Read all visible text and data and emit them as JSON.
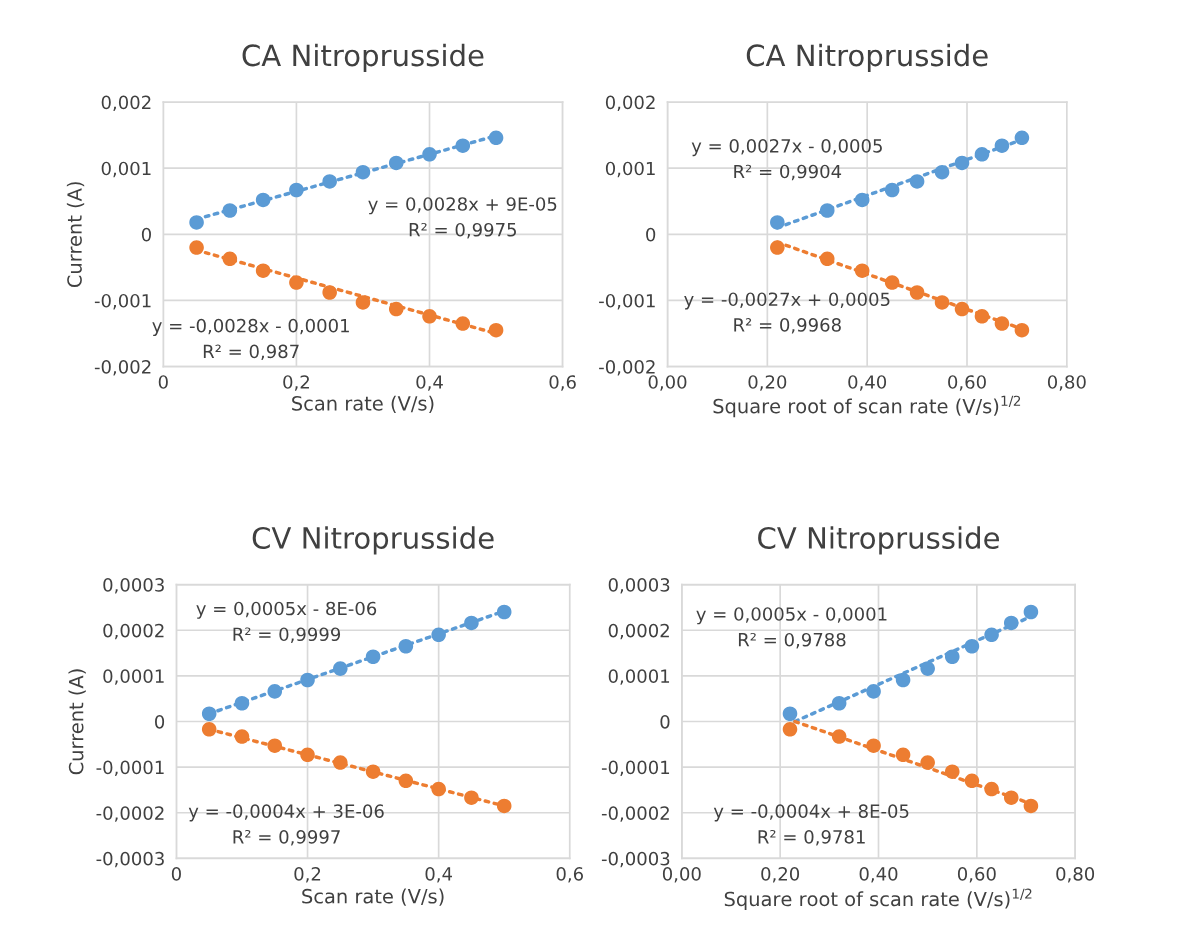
{
  "chart_data": [
    {
      "type": "scatter",
      "title": "CA Nitroprusside",
      "xlabel": "Scan rate (V/s)",
      "ylabel": "Current (A)",
      "marker": "circle",
      "grid": true,
      "xlim": [
        0,
        0.6
      ],
      "xticks": [
        0,
        {
          "value": 0.2,
          "label": "0,2"
        },
        {
          "value": 0.4,
          "label": "0,4"
        },
        {
          "value": 0.6,
          "label": "0,6"
        }
      ],
      "ylim": [
        -0.002,
        0.002
      ],
      "yticks": [
        {
          "value": -0.002,
          "label": "-0,002"
        },
        {
          "value": -0.001,
          "label": "-0,001"
        },
        0,
        {
          "value": 0.001,
          "label": "0,001"
        },
        {
          "value": 0.002,
          "label": "0,002"
        }
      ],
      "x": [
        0.05,
        0.1,
        0.15,
        0.2,
        0.25,
        0.3,
        0.35,
        0.4,
        0.45,
        0.5
      ],
      "series": [
        {
          "color": "#5b9bd5",
          "values": [
            0.00018,
            0.00036,
            0.00052,
            0.00067,
            0.0008,
            0.00094,
            0.00108,
            0.00121,
            0.00134,
            0.00146
          ]
        },
        {
          "color": "#ed7d31",
          "values": [
            -0.0002,
            -0.00037,
            -0.00055,
            -0.00073,
            -0.00088,
            -0.00103,
            -0.00113,
            -0.00124,
            -0.00135,
            -0.00145
          ]
        },
        {
          "type": "line",
          "marker": "none",
          "line_style": "dotted",
          "color": "#5b9bd5",
          "x": [
            0.05,
            0.5
          ],
          "values": [
            0.00023,
            0.00149
          ]
        },
        {
          "type": "line",
          "marker": "none",
          "line_style": "dotted",
          "color": "#ed7d31",
          "x": [
            0.05,
            0.5
          ],
          "values": [
            -0.00024,
            -0.0015
          ]
        }
      ],
      "annotations": [
        "y = 0,0028x + 9E-05\nR² = 0,9975",
        "y = -0,0028x - 0,0001\nR² = 0,987"
      ]
    },
    {
      "type": "scatter",
      "title": "CA Nitroprusside",
      "xlabel": "Square root of scan rate (V/s)$^{1/2}$",
      "marker": "circle",
      "grid": true,
      "xlim": [
        0,
        0.8
      ],
      "xticks": [
        {
          "value": 0,
          "label": "0,00"
        },
        {
          "value": 0.2,
          "label": "0,20"
        },
        {
          "value": 0.4,
          "label": "0,40"
        },
        {
          "value": 0.6,
          "label": "0,60"
        },
        {
          "value": 0.8,
          "label": "0,80"
        }
      ],
      "ylim": [
        -0.002,
        0.002
      ],
      "yticks": [
        {
          "value": -0.002,
          "label": "-0,002"
        },
        {
          "value": -0.001,
          "label": "-0,001"
        },
        0,
        {
          "value": 0.001,
          "label": "0,001"
        },
        {
          "value": 0.002,
          "label": "0,002"
        }
      ],
      "x": [
        0.22,
        0.32,
        0.39,
        0.45,
        0.5,
        0.55,
        0.59,
        0.63,
        0.67,
        0.71
      ],
      "series": [
        {
          "color": "#5b9bd5",
          "values": [
            0.00018,
            0.00036,
            0.00052,
            0.00067,
            0.0008,
            0.00094,
            0.00108,
            0.00121,
            0.00134,
            0.00146
          ]
        },
        {
          "color": "#ed7d31",
          "values": [
            -0.0002,
            -0.00037,
            -0.00055,
            -0.00073,
            -0.00088,
            -0.00103,
            -0.00113,
            -0.00124,
            -0.00135,
            -0.00145
          ]
        },
        {
          "type": "line",
          "marker": "none",
          "line_style": "dotted",
          "color": "#5b9bd5",
          "x": [
            0.22,
            0.71
          ],
          "values": [
            0.0001,
            0.00143
          ]
        },
        {
          "type": "line",
          "marker": "none",
          "line_style": "dotted",
          "color": "#ed7d31",
          "x": [
            0.22,
            0.71
          ],
          "values": [
            -0.00012,
            -0.00143
          ]
        }
      ],
      "annotations": [
        "y = 0,0027x - 0,0005\nR² = 0,9904",
        "y = -0,0027x + 0,0005\nR² = 0,9968"
      ]
    },
    {
      "type": "scatter",
      "title": "CV Nitroprusside",
      "xlabel": "Scan rate (V/s)",
      "ylabel": "Current (A)",
      "marker": "circle",
      "grid": true,
      "xlim": [
        0,
        0.6
      ],
      "xticks": [
        0,
        {
          "value": 0.2,
          "label": "0,2"
        },
        {
          "value": 0.4,
          "label": "0,4"
        },
        {
          "value": 0.6,
          "label": "0,6"
        }
      ],
      "ylim": [
        -0.0003,
        0.0003
      ],
      "yticks": [
        {
          "value": -0.0003,
          "label": "-0,0003"
        },
        {
          "value": -0.0002,
          "label": "-0,0002"
        },
        {
          "value": -0.0001,
          "label": "-0,0001"
        },
        0,
        {
          "value": 0.0001,
          "label": "0,0001"
        },
        {
          "value": 0.0002,
          "label": "0,0002"
        },
        {
          "value": 0.0003,
          "label": "0,0003"
        }
      ],
      "x": [
        0.05,
        0.1,
        0.15,
        0.2,
        0.25,
        0.3,
        0.35,
        0.4,
        0.45,
        0.5
      ],
      "series": [
        {
          "color": "#5b9bd5",
          "values": [
            1.7e-05,
            4e-05,
            6.6e-05,
            9.1e-05,
            0.000116,
            0.000142,
            0.000165,
            0.00019,
            0.000216,
            0.00024
          ]
        },
        {
          "color": "#ed7d31",
          "values": [
            -1.7e-05,
            -3.3e-05,
            -5.3e-05,
            -7.3e-05,
            -9e-05,
            -0.00011,
            -0.00013,
            -0.000148,
            -0.000167,
            -0.000185
          ]
        },
        {
          "type": "line",
          "marker": "none",
          "line_style": "dotted",
          "color": "#5b9bd5",
          "x": [
            0.05,
            0.5
          ],
          "values": [
            1.7e-05,
            0.000242
          ]
        },
        {
          "type": "line",
          "marker": "none",
          "line_style": "dotted",
          "color": "#ed7d31",
          "x": [
            0.05,
            0.5
          ],
          "values": [
            -1.7e-05,
            -0.000185
          ]
        }
      ],
      "annotations": [
        "y = 0,0005x - 8E-06\nR² = 0,9999",
        "y = -0,0004x + 3E-06\nR² = 0,9997"
      ]
    },
    {
      "type": "scatter",
      "title": "CV Nitroprusside",
      "xlabel": "Square root of scan rate (V/s)$^{1/2}$",
      "marker": "circle",
      "grid": true,
      "xlim": [
        0,
        0.8
      ],
      "xticks": [
        {
          "value": 0,
          "label": "0,00"
        },
        {
          "value": 0.2,
          "label": "0,20"
        },
        {
          "value": 0.4,
          "label": "0,40"
        },
        {
          "value": 0.6,
          "label": "0,60"
        },
        {
          "value": 0.8,
          "label": "0,80"
        }
      ],
      "ylim": [
        -0.0003,
        0.0003
      ],
      "yticks": [
        {
          "value": -0.0003,
          "label": "-0,0003"
        },
        {
          "value": -0.0002,
          "label": "-0,0002"
        },
        {
          "value": -0.0001,
          "label": "-0,0001"
        },
        0,
        {
          "value": 0.0001,
          "label": "0,0001"
        },
        {
          "value": 0.0002,
          "label": "0,0002"
        },
        {
          "value": 0.0003,
          "label": "0,0003"
        }
      ],
      "x": [
        0.22,
        0.32,
        0.39,
        0.45,
        0.5,
        0.55,
        0.59,
        0.63,
        0.67,
        0.71
      ],
      "series": [
        {
          "color": "#5b9bd5",
          "values": [
            1.7e-05,
            4e-05,
            6.6e-05,
            9.1e-05,
            0.000116,
            0.000142,
            0.000165,
            0.00019,
            0.000216,
            0.00024
          ]
        },
        {
          "color": "#ed7d31",
          "values": [
            -1.7e-05,
            -3.3e-05,
            -5.3e-05,
            -7.3e-05,
            -9e-05,
            -0.00011,
            -0.00013,
            -0.000148,
            -0.000167,
            -0.000185
          ]
        },
        {
          "type": "line",
          "marker": "none",
          "line_style": "dotted",
          "color": "#5b9bd5",
          "x": [
            0.23,
            0.71
          ],
          "values": [
            0.0,
            0.00023
          ]
        },
        {
          "type": "line",
          "marker": "none",
          "line_style": "dotted",
          "color": "#ed7d31",
          "x": [
            0.23,
            0.71
          ],
          "values": [
            0.0,
            -0.00018
          ]
        }
      ],
      "annotations": [
        "y = 0,0005x - 0,0001\nR² = 0,9788",
        "y = -0,0004x + 8E-05\nR² = 0,9781"
      ]
    }
  ]
}
